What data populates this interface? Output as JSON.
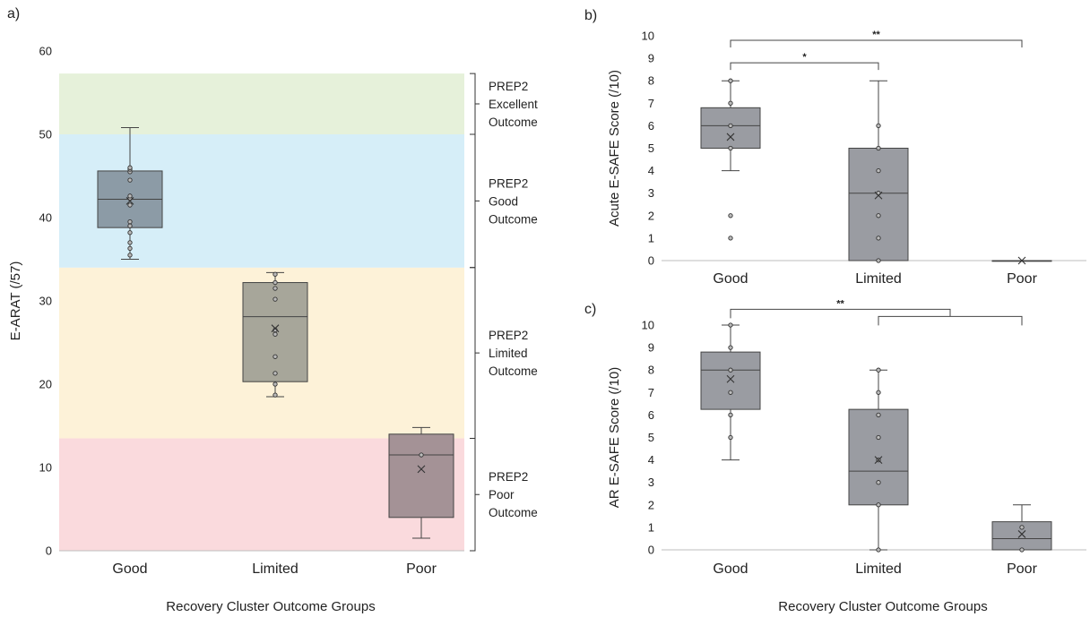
{
  "chart_data": [
    {
      "panel": "a)",
      "type": "box",
      "ylabel": "E-ARAT (/57)",
      "xlabel": "Recovery Cluster Outcome Groups",
      "ylim": [
        0,
        60
      ],
      "yticks": [
        0,
        10,
        20,
        30,
        40,
        50,
        60
      ],
      "categories": [
        "Good",
        "Limited",
        "Poor"
      ],
      "boxes": [
        {
          "name": "Good",
          "min": 35,
          "q1": 38.8,
          "median": 42.2,
          "q3": 45.6,
          "max": 50.8,
          "mean": 42.0,
          "points": [
            35.5,
            36.3,
            37.0,
            38.2,
            39.0,
            39.5,
            41.5,
            42.3,
            42.6,
            44.5,
            45.5,
            45.8,
            46.0
          ],
          "color": "#8c9ba6"
        },
        {
          "name": "Limited",
          "min": 18.5,
          "q1": 20.3,
          "median": 28.1,
          "q3": 32.2,
          "max": 33.4,
          "mean": 26.7,
          "points": [
            18.7,
            20.0,
            21.3,
            23.3,
            26.0,
            26.5,
            30.2,
            31.5,
            32.2,
            33.2
          ],
          "color": "#a7a69a"
        },
        {
          "name": "Poor",
          "min": 1.5,
          "q1": 4.0,
          "median": 11.5,
          "q3": 14.0,
          "max": 14.8,
          "mean": 9.8,
          "points": [
            11.5
          ],
          "color": "#a49296"
        }
      ],
      "zones": [
        {
          "from": 0,
          "to": 13.5,
          "label_lines": [
            "PREP2",
            "Poor",
            "Outcome"
          ],
          "color": "#fadadd"
        },
        {
          "from": 13.5,
          "to": 34,
          "label_lines": [
            "PREP2",
            "Limited",
            "Outcome"
          ],
          "color": "#fdf2d8"
        },
        {
          "from": 34,
          "to": 50,
          "label_lines": [
            "PREP2",
            "Good",
            "Outcome"
          ],
          "color": "#d6eef8"
        },
        {
          "from": 50,
          "to": 57.3,
          "label_lines": [
            "PREP2",
            "Excellent",
            "Outcome"
          ],
          "color": "#e6f1da"
        }
      ]
    },
    {
      "panel": "b)",
      "type": "box",
      "ylabel": "Acute E-SAFE Score (/10)",
      "ylim": [
        0,
        10
      ],
      "yticks": [
        0,
        1,
        2,
        3,
        4,
        5,
        6,
        7,
        8,
        9,
        10
      ],
      "categories": [
        "Good",
        "Limited",
        "Poor"
      ],
      "boxes": [
        {
          "name": "Good",
          "min": 4,
          "q1": 5,
          "median": 6,
          "q3": 6.8,
          "max": 8,
          "mean": 5.5,
          "points": [
            1,
            2,
            5,
            6,
            7,
            8
          ],
          "color": "#9a9ca2"
        },
        {
          "name": "Limited",
          "min": 0,
          "q1": 0,
          "median": 3,
          "q3": 5,
          "max": 8,
          "mean": 2.9,
          "points": [
            0,
            1,
            2,
            3,
            4,
            5,
            6
          ],
          "color": "#9a9ca2"
        },
        {
          "name": "Poor",
          "min": 0,
          "q1": 0,
          "median": 0,
          "q3": 0,
          "max": 0,
          "mean": 0,
          "points": [],
          "color": "#9a9ca2"
        }
      ],
      "brackets": [
        {
          "label": "*",
          "from": "Good",
          "to": "Limited",
          "y": 8.8
        },
        {
          "label": "**",
          "from": "Good",
          "to": "Poor",
          "y": 9.8
        }
      ]
    },
    {
      "panel": "c)",
      "type": "box",
      "ylabel": "AR E-SAFE Score (/10)",
      "xlabel": "Recovery Cluster Outcome Groups",
      "ylim": [
        0,
        10
      ],
      "yticks": [
        0,
        1,
        2,
        3,
        4,
        5,
        6,
        7,
        8,
        9,
        10
      ],
      "categories": [
        "Good",
        "Limited",
        "Poor"
      ],
      "boxes": [
        {
          "name": "Good",
          "min": 4,
          "q1": 6.25,
          "median": 8,
          "q3": 8.8,
          "max": 10,
          "mean": 7.6,
          "points": [
            5,
            6,
            7,
            8,
            9,
            10
          ],
          "color": "#9a9ca2"
        },
        {
          "name": "Limited",
          "min": 0,
          "q1": 2,
          "median": 3.5,
          "q3": 6.25,
          "max": 8,
          "mean": 4,
          "points": [
            0,
            2,
            3,
            4,
            5,
            6,
            7,
            8
          ],
          "color": "#9a9ca2"
        },
        {
          "name": "Poor",
          "min": 0,
          "q1": 0,
          "median": 0.5,
          "q3": 1.25,
          "max": 2,
          "mean": 0.7,
          "points": [
            0,
            1
          ],
          "color": "#9a9ca2"
        }
      ],
      "brackets": [
        {
          "label": "**",
          "from": "Good",
          "to": "Limited+Poor",
          "y": 10.7
        }
      ]
    }
  ]
}
